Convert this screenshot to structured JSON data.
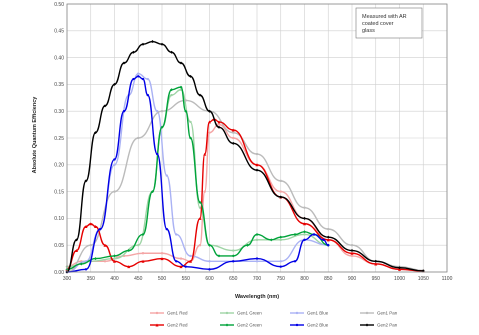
{
  "chart_data": {
    "type": "line",
    "title": "",
    "xlabel": "Wavelength (nm)",
    "ylabel": "Absolute Quantum Efficiency",
    "xlim": [
      300,
      1100
    ],
    "ylim": [
      0,
      0.5
    ],
    "xticks": [
      300,
      350,
      400,
      450,
      500,
      550,
      600,
      650,
      700,
      750,
      800,
      850,
      900,
      950,
      1000,
      1050,
      1100
    ],
    "yticks": [
      0,
      0.05,
      0.1,
      0.15,
      0.2,
      0.25,
      0.3,
      0.35,
      0.4,
      0.45,
      0.5
    ],
    "xtick_labels": [
      "300",
      "350",
      "400",
      "450",
      "500",
      "550",
      "600",
      "650",
      "700",
      "750",
      "800",
      "850",
      "900",
      "950",
      "1000",
      "1050",
      "1100"
    ],
    "ytick_labels": [
      "0.00",
      "0.05",
      "0.10",
      "0.15",
      "0.20",
      "0.25",
      "0.30",
      "0.35",
      "0.40",
      "0.45",
      "0.50"
    ],
    "grid": true,
    "legend_position": "bottom",
    "annotation": "Measured with AR coated cover glass",
    "series": [
      {
        "name": "Gen1 Red",
        "color": "#f4a6a6",
        "marker": "circle",
        "x": [
          300,
          330,
          350,
          380,
          420,
          460,
          500,
          540,
          560,
          580,
          590,
          600,
          620,
          650,
          700,
          750,
          800,
          850,
          900,
          950,
          1000,
          1050
        ],
        "y": [
          0.01,
          0.02,
          0.02,
          0.02,
          0.03,
          0.035,
          0.035,
          0.025,
          0.02,
          0.05,
          0.15,
          0.26,
          0.275,
          0.25,
          0.2,
          0.15,
          0.1,
          0.06,
          0.03,
          0.015,
          0.005,
          0.002
        ]
      },
      {
        "name": "Gen1 Green",
        "color": "#9fd4a6",
        "marker": "circle",
        "x": [
          300,
          350,
          400,
          450,
          480,
          500,
          520,
          540,
          560,
          580,
          600,
          650,
          700,
          750,
          800,
          850
        ],
        "y": [
          0.01,
          0.02,
          0.025,
          0.05,
          0.15,
          0.27,
          0.33,
          0.34,
          0.28,
          0.12,
          0.05,
          0.04,
          0.06,
          0.06,
          0.07,
          0.05
        ]
      },
      {
        "name": "Gen1 Blue",
        "color": "#aab2f4",
        "marker": "circle",
        "x": [
          300,
          340,
          370,
          400,
          430,
          450,
          470,
          490,
          510,
          530,
          560,
          600,
          650,
          700,
          750,
          800,
          850
        ],
        "y": [
          0.0,
          0.02,
          0.08,
          0.2,
          0.33,
          0.37,
          0.36,
          0.3,
          0.18,
          0.07,
          0.03,
          0.02,
          0.02,
          0.02,
          0.02,
          0.06,
          0.05
        ]
      },
      {
        "name": "Gen1 Pan",
        "color": "#bbbbbb",
        "marker": "circle",
        "x": [
          300,
          350,
          400,
          450,
          500,
          550,
          600,
          650,
          700,
          750,
          800,
          850,
          900,
          950,
          1000,
          1050
        ],
        "y": [
          0.0,
          0.05,
          0.15,
          0.25,
          0.3,
          0.32,
          0.3,
          0.26,
          0.22,
          0.17,
          0.12,
          0.08,
          0.05,
          0.02,
          0.01,
          0.003
        ]
      },
      {
        "name": "Gen2 Red",
        "color": "#e60000",
        "marker": "triangle",
        "x": [
          300,
          320,
          340,
          350,
          360,
          380,
          400,
          430,
          460,
          500,
          540,
          560,
          580,
          590,
          600,
          610,
          620,
          650,
          700,
          750,
          800,
          850,
          900,
          950,
          1000,
          1050
        ],
        "y": [
          0.005,
          0.04,
          0.085,
          0.09,
          0.085,
          0.05,
          0.02,
          0.01,
          0.02,
          0.025,
          0.01,
          0.02,
          0.1,
          0.22,
          0.28,
          0.285,
          0.28,
          0.265,
          0.2,
          0.14,
          0.09,
          0.06,
          0.035,
          0.015,
          0.005,
          0.002
        ]
      },
      {
        "name": "Gen2 Green",
        "color": "#00a33a",
        "marker": "diamond",
        "x": [
          300,
          330,
          360,
          400,
          430,
          460,
          480,
          500,
          520,
          540,
          550,
          560,
          580,
          600,
          620,
          650,
          680,
          700,
          730,
          750,
          780,
          800,
          820,
          850
        ],
        "y": [
          0.005,
          0.015,
          0.025,
          0.03,
          0.04,
          0.07,
          0.15,
          0.27,
          0.34,
          0.345,
          0.3,
          0.25,
          0.13,
          0.05,
          0.03,
          0.03,
          0.05,
          0.07,
          0.06,
          0.065,
          0.07,
          0.075,
          0.07,
          0.05
        ]
      },
      {
        "name": "Gen2 Blue",
        "color": "#0000e6",
        "marker": "circle",
        "x": [
          300,
          340,
          370,
          400,
          420,
          440,
          450,
          460,
          470,
          490,
          510,
          530,
          550,
          600,
          650,
          700,
          750,
          780,
          800,
          820,
          840,
          850
        ],
        "y": [
          0.0,
          0.005,
          0.08,
          0.21,
          0.3,
          0.36,
          0.365,
          0.36,
          0.33,
          0.22,
          0.08,
          0.02,
          0.01,
          0.005,
          0.02,
          0.025,
          0.01,
          0.02,
          0.06,
          0.07,
          0.06,
          0.05
        ]
      },
      {
        "name": "Gen2 Pan",
        "color": "#000000",
        "marker": "diamond",
        "x": [
          300,
          320,
          340,
          360,
          380,
          400,
          420,
          440,
          460,
          480,
          500,
          520,
          540,
          560,
          580,
          600,
          620,
          650,
          700,
          750,
          800,
          850,
          900,
          950,
          1000,
          1050
        ],
        "y": [
          0.0,
          0.06,
          0.17,
          0.26,
          0.31,
          0.35,
          0.39,
          0.41,
          0.425,
          0.43,
          0.425,
          0.41,
          0.39,
          0.365,
          0.33,
          0.3,
          0.27,
          0.24,
          0.19,
          0.14,
          0.1,
          0.065,
          0.04,
          0.02,
          0.008,
          0.002
        ]
      }
    ]
  }
}
